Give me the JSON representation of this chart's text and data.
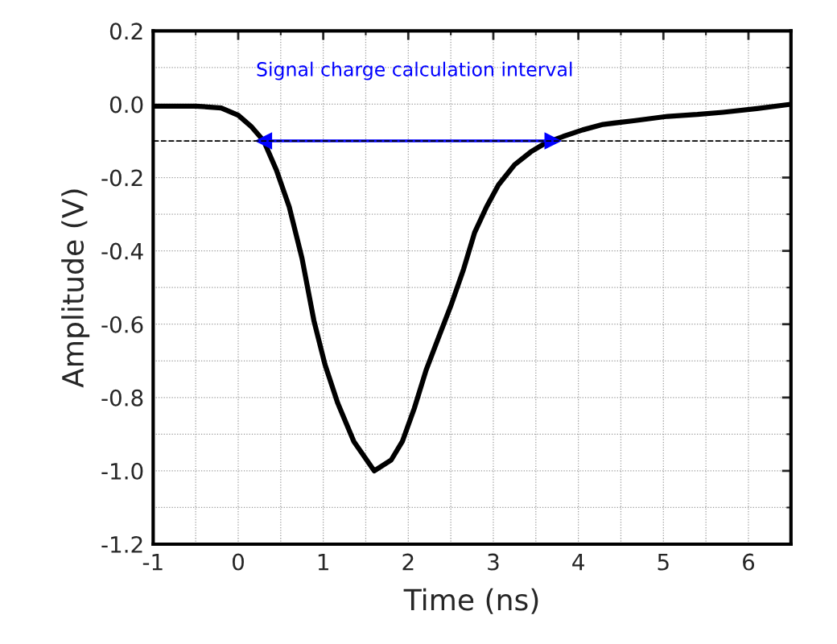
{
  "chart_data": {
    "type": "line",
    "xlabel": "Time (ns)",
    "ylabel": "Amplitude (V)",
    "x": [
      -1,
      -0.5,
      -0.2,
      0,
      0.15,
      0.3,
      0.45,
      0.6,
      0.75,
      0.89,
      1.02,
      1.17,
      1.36,
      1.6,
      1.8,
      1.93,
      2.07,
      2.21,
      2.35,
      2.5,
      2.65,
      2.78,
      2.92,
      3.06,
      3.25,
      3.44,
      3.62,
      3.82,
      4.05,
      4.29,
      4.65,
      5.05,
      5.4,
      5.7,
      6.1,
      6.5
    ],
    "series": [
      {
        "color": "#000000",
        "values": [
          -0.005,
          -0.005,
          -0.01,
          -0.03,
          -0.06,
          -0.1,
          -0.18,
          -0.28,
          -0.42,
          -0.59,
          -0.71,
          -0.815,
          -0.92,
          -1.0,
          -0.97,
          -0.92,
          -0.83,
          -0.725,
          -0.64,
          -0.55,
          -0.45,
          -0.35,
          -0.28,
          -0.22,
          -0.165,
          -0.13,
          -0.105,
          -0.088,
          -0.07,
          -0.055,
          -0.045,
          -0.033,
          -0.028,
          -0.022,
          -0.012,
          0.0
        ]
      },
      {
        "color": "#0000ff",
        "x": [
          0.3,
          3.7
        ],
        "values": [
          -0.1,
          -0.1
        ],
        "marker": "triangle"
      }
    ],
    "xlim": [
      -1,
      6.5
    ],
    "xticks": [
      -1,
      0,
      1,
      2,
      3,
      4,
      5,
      6
    ],
    "ylim": [
      -1.2,
      0.2
    ],
    "yticks": [
      {
        "value": -1.2,
        "label": "-1.2"
      },
      {
        "value": -1.0,
        "label": "-1.0"
      },
      {
        "value": -0.8,
        "label": "-0.8"
      },
      {
        "value": -0.6,
        "label": "-0.6"
      },
      {
        "value": -0.4,
        "label": "-0.4"
      },
      {
        "value": -0.2,
        "label": "-0.2"
      },
      {
        "value": 0.0,
        "label": "0.0"
      },
      {
        "value": 0.2,
        "label": "0.2"
      }
    ],
    "grid": true,
    "legend": false,
    "line_style": "solid",
    "marker": "none",
    "ref_lines": [
      {
        "axis": "y",
        "value": -0.1,
        "color": "#000000",
        "line_style": "dashed"
      }
    ],
    "annotations": [
      "Signal charge calculation interval"
    ]
  }
}
